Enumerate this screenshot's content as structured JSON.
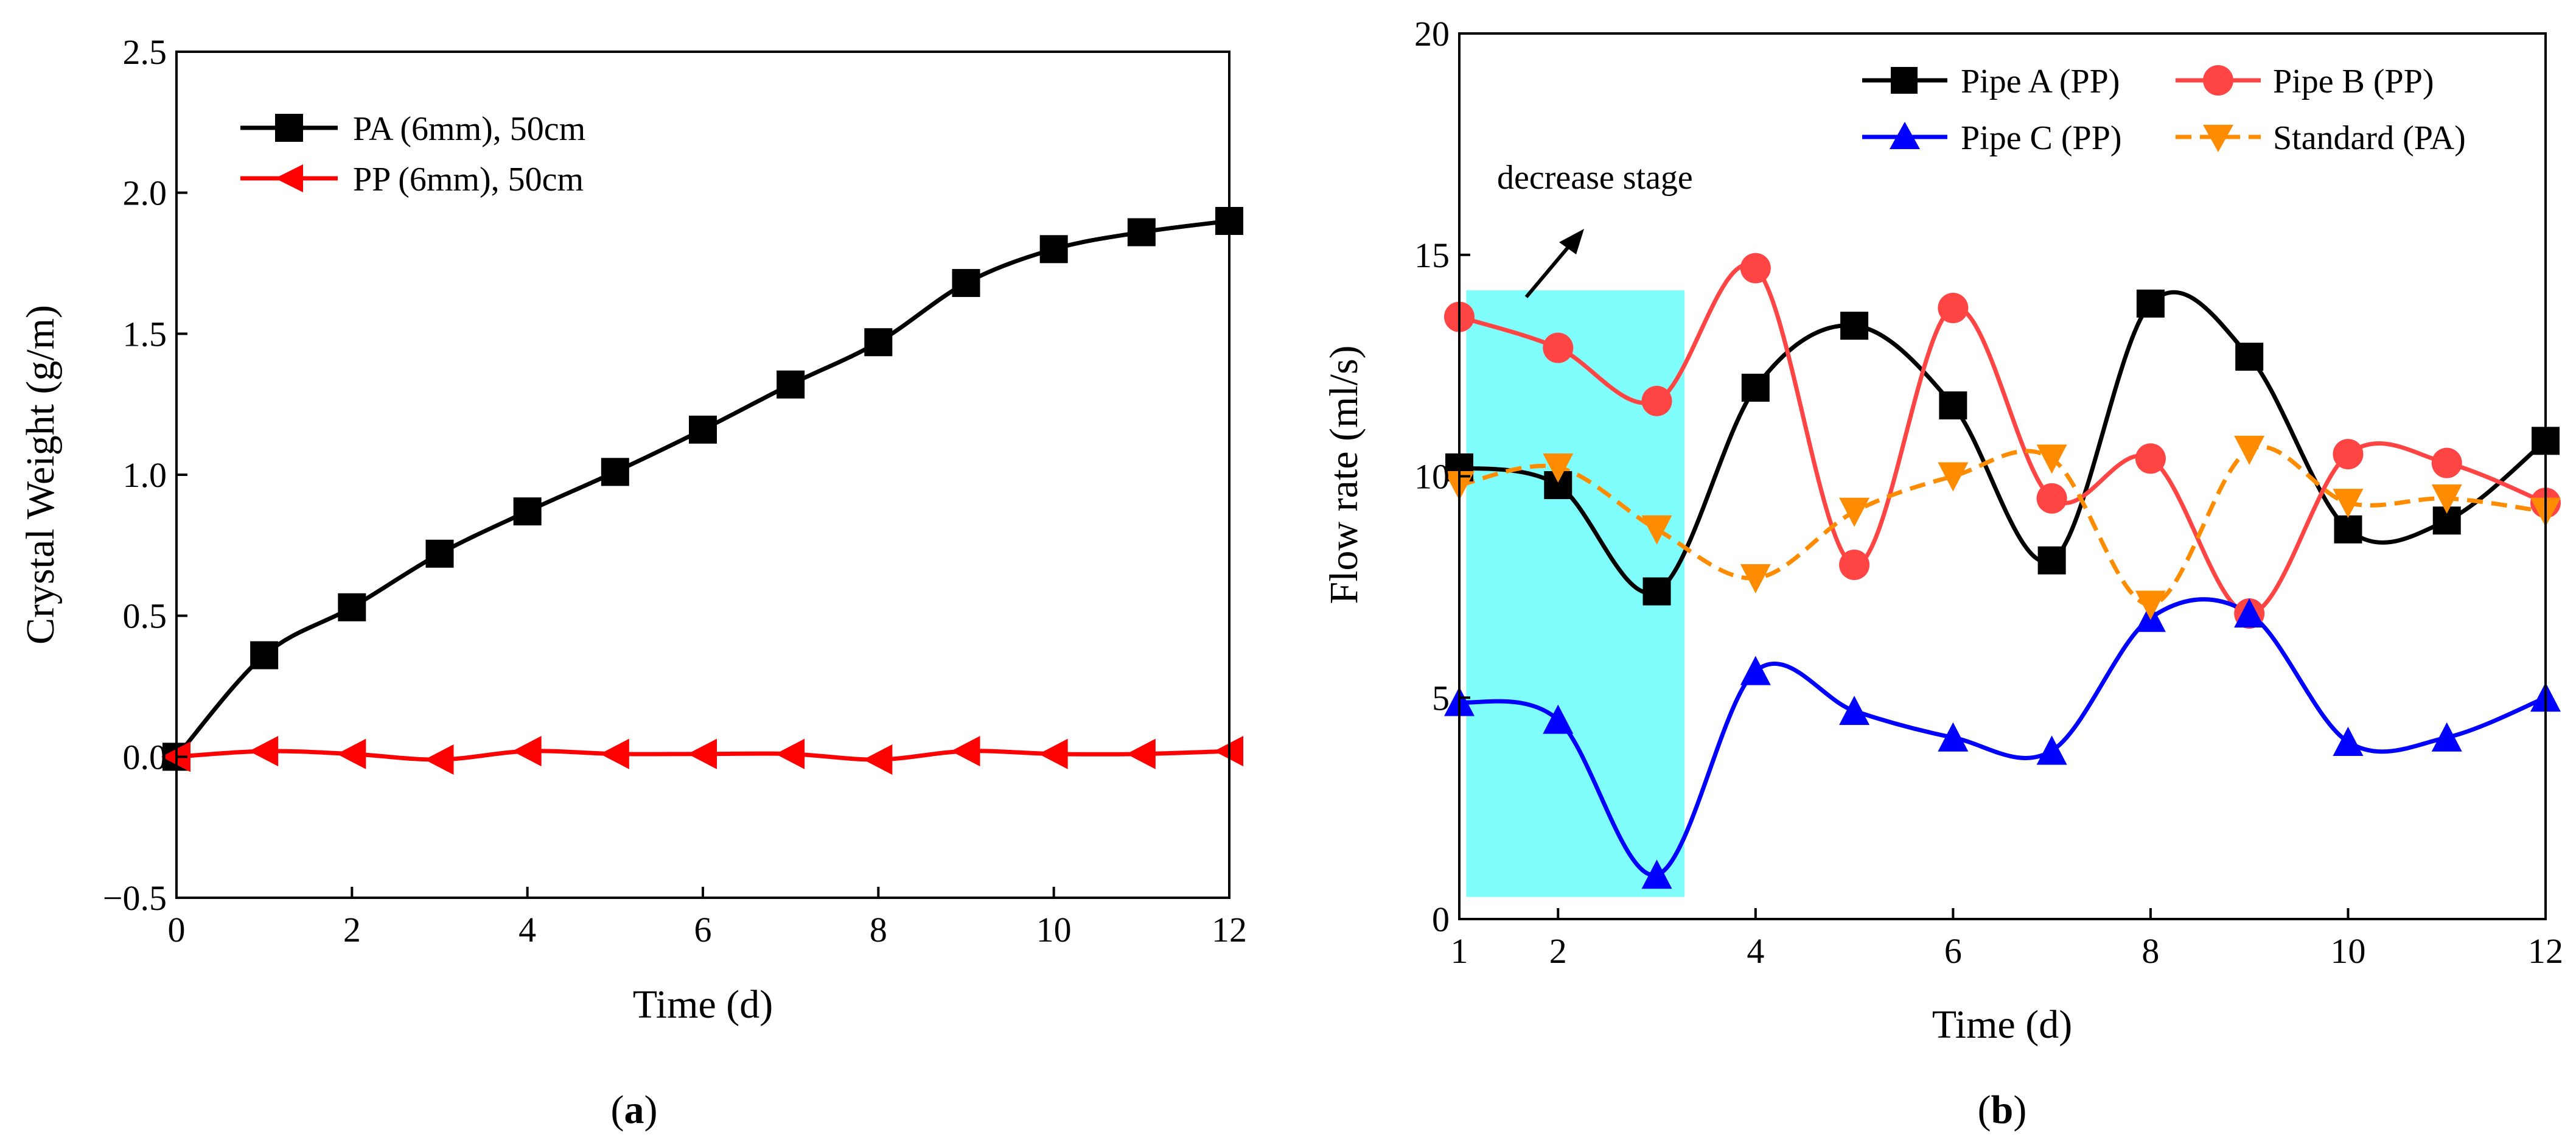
{
  "chart_data": [
    {
      "type": "line",
      "panel_label_prefix": "(",
      "panel_label_letter": "a",
      "panel_label_suffix": ")",
      "xlabel": "Time (d)",
      "ylabel": "Crystal Weight (g/m)",
      "xlim": [
        0,
        12
      ],
      "ylim": [
        -0.5,
        2.5
      ],
      "xticks": [
        "0",
        "2",
        "4",
        "6",
        "8",
        "10",
        "12"
      ],
      "yticks": [
        "−0.5",
        "0.0",
        "0.5",
        "1.0",
        "1.5",
        "2.0",
        "2.5"
      ],
      "series": [
        {
          "name": "PA (6mm), 50cm",
          "color": "#000000",
          "marker": "square",
          "dash": "solid",
          "x": [
            0,
            1,
            2,
            3,
            4,
            5,
            6,
            7,
            8,
            9,
            10,
            11,
            12
          ],
          "values": [
            0.0,
            0.36,
            0.53,
            0.72,
            0.87,
            1.01,
            1.16,
            1.32,
            1.47,
            1.68,
            1.8,
            1.86,
            1.9
          ]
        },
        {
          "name": "PP (6mm), 50cm",
          "color": "#ff0000",
          "marker": "triangle-left",
          "dash": "solid",
          "x": [
            0,
            1,
            2,
            3,
            4,
            5,
            6,
            7,
            8,
            9,
            10,
            11,
            12
          ],
          "values": [
            0.0,
            0.02,
            0.01,
            -0.01,
            0.02,
            0.01,
            0.01,
            0.01,
            -0.01,
            0.02,
            0.01,
            0.01,
            0.02
          ]
        }
      ]
    },
    {
      "type": "line",
      "panel_label_prefix": "(",
      "panel_label_letter": "b",
      "panel_label_suffix": ")",
      "xlabel": "Time (d)",
      "ylabel": "Flow rate (ml/s)",
      "xlim": [
        1,
        12
      ],
      "ylim": [
        0,
        20
      ],
      "xticks": [
        "1",
        "2",
        "4",
        "6",
        "8",
        "10",
        "12"
      ],
      "yticks": [
        "0",
        "5",
        "10",
        "15",
        "20"
      ],
      "annotation": "decrease stage",
      "highlight_color": "#80fdfd",
      "highlight_x_range": [
        1.07,
        3.28
      ],
      "highlight_y_range": [
        0.5,
        14.2
      ],
      "series": [
        {
          "name": "Pipe A (PP)",
          "color": "#000000",
          "marker": "square",
          "dash": "solid",
          "x": [
            1,
            2,
            3,
            4,
            5,
            6,
            7,
            8,
            9,
            10,
            11,
            12
          ],
          "values": [
            10.2,
            9.8,
            7.4,
            12.0,
            13.4,
            11.6,
            8.1,
            13.9,
            12.7,
            8.8,
            9.0,
            10.8
          ]
        },
        {
          "name": "Pipe B (PP)",
          "color": "#ff4444",
          "marker": "circle",
          "dash": "solid",
          "x": [
            1,
            2,
            3,
            4,
            5,
            6,
            7,
            8,
            9,
            10,
            11,
            12
          ],
          "values": [
            13.6,
            12.9,
            11.7,
            14.7,
            8.0,
            13.8,
            9.5,
            10.4,
            6.9,
            10.5,
            10.3,
            9.4
          ]
        },
        {
          "name": "Pipe C (PP)",
          "color": "#0000ff",
          "marker": "triangle-up",
          "dash": "solid",
          "x": [
            1,
            2,
            3,
            4,
            5,
            6,
            7,
            8,
            9,
            10,
            11,
            12
          ],
          "values": [
            4.9,
            4.5,
            1.0,
            5.6,
            4.7,
            4.1,
            3.8,
            6.8,
            6.9,
            4.0,
            4.1,
            5.0
          ]
        },
        {
          "name": "Standard (PA)",
          "color": "#ff8c00",
          "marker": "triangle-down",
          "dash": "dashed",
          "x": [
            1,
            2,
            3,
            4,
            5,
            6,
            7,
            8,
            9,
            10,
            11,
            12
          ],
          "values": [
            9.8,
            10.2,
            8.8,
            7.7,
            9.2,
            10.0,
            10.4,
            7.1,
            10.6,
            9.4,
            9.5,
            9.2
          ]
        }
      ]
    }
  ]
}
